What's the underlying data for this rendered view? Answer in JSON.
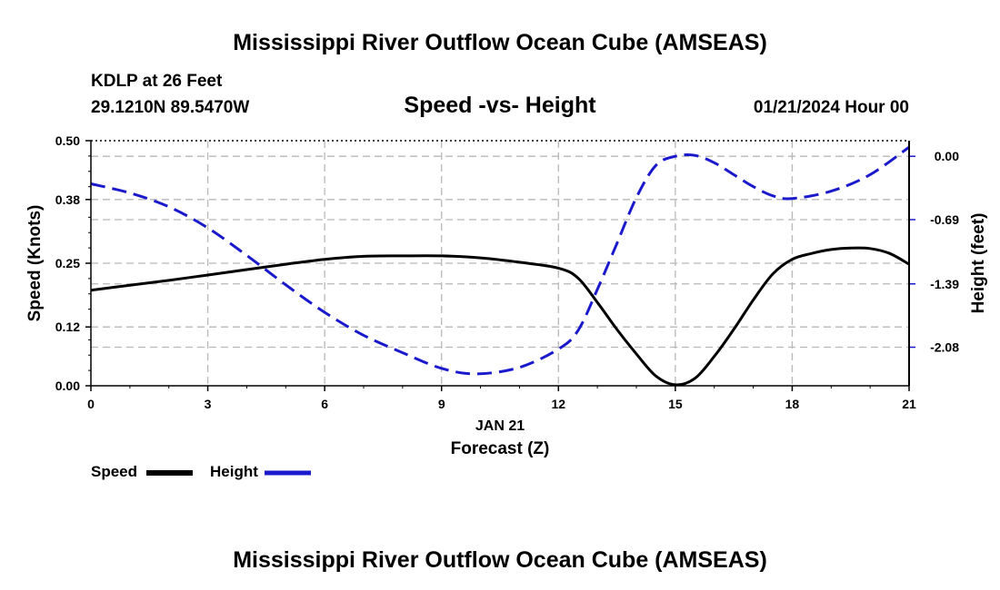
{
  "page": {
    "title_top": "Mississippi River Outflow Ocean Cube (AMSEAS)",
    "title_bottom": "Mississippi River Outflow Ocean Cube (AMSEAS)",
    "station": "KDLP at 26 Feet",
    "coords": "29.1210N  89.5470W",
    "date": "01/21/2024 Hour 00"
  },
  "chart_data": {
    "type": "line",
    "title": "Speed -vs- Height",
    "xlabel": "Forecast (Z)",
    "xdate": "JAN 21",
    "ylabel": "Speed (Knots)",
    "y2label": "Height (feet)",
    "x_ticks": [
      "0",
      "3",
      "6",
      "9",
      "12",
      "15",
      "18",
      "21"
    ],
    "x_range": [
      0,
      21
    ],
    "y_ticks": [
      "0.00",
      "0.12",
      "0.25",
      "0.38",
      "0.50"
    ],
    "ylim": [
      0,
      0.5
    ],
    "y2_ticks": [
      "0.00",
      "-0.69",
      "-1.39",
      "-2.08"
    ],
    "y2_tick_values": [
      0.0,
      -0.69,
      -1.39,
      -2.08
    ],
    "y2lim": [
      -2.5,
      0.17
    ],
    "grid": true,
    "series": [
      {
        "name": "Speed",
        "color": "#000000",
        "style": "solid",
        "axis": "left",
        "x": [
          0,
          1,
          2,
          3,
          4,
          5,
          6,
          7,
          8,
          9,
          10,
          11,
          12,
          12.5,
          13,
          13.5,
          14,
          14.5,
          15,
          15.5,
          16,
          16.5,
          17,
          17.5,
          18,
          18.5,
          19,
          19.5,
          20,
          20.5,
          21
        ],
        "values": [
          0.195,
          0.205,
          0.215,
          0.226,
          0.237,
          0.248,
          0.258,
          0.264,
          0.265,
          0.265,
          0.261,
          0.252,
          0.24,
          0.22,
          0.17,
          0.115,
          0.065,
          0.02,
          0.002,
          0.015,
          0.06,
          0.115,
          0.175,
          0.228,
          0.258,
          0.27,
          0.278,
          0.281,
          0.28,
          0.27,
          0.248
        ]
      },
      {
        "name": "Height",
        "color": "#1a1acc",
        "style": "dashed",
        "axis": "right",
        "x": [
          0,
          1,
          2,
          3,
          4,
          5,
          6,
          7,
          8,
          9,
          9.9,
          11,
          12,
          12.5,
          13,
          13.5,
          14,
          14.5,
          15,
          15.5,
          16,
          16.5,
          17,
          17.5,
          18,
          19,
          20,
          21
        ],
        "values": [
          -0.3,
          -0.4,
          -0.55,
          -0.78,
          -1.08,
          -1.4,
          -1.7,
          -1.95,
          -2.14,
          -2.31,
          -2.37,
          -2.3,
          -2.1,
          -1.9,
          -1.45,
          -0.95,
          -0.45,
          -0.1,
          0.0,
          0.01,
          -0.07,
          -0.2,
          -0.33,
          -0.43,
          -0.46,
          -0.38,
          -0.2,
          0.1
        ]
      }
    ]
  },
  "legend": {
    "speed_label": "Speed",
    "height_label": "Height"
  }
}
